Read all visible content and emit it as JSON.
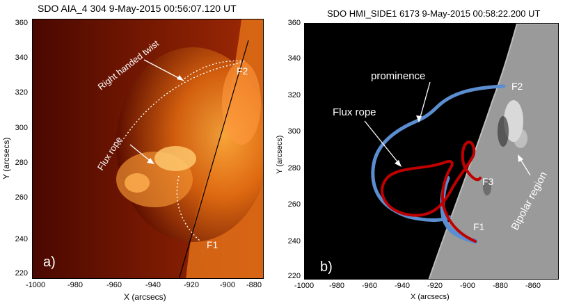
{
  "panel_a": {
    "title": "SDO AIA_4 304  9-May-2015 00:56:07.120 UT",
    "panel_label": "a)",
    "xlabel": "X (arcsecs)",
    "ylabel": "Y (arcsecs)",
    "xticks": [
      "-1000",
      "-980",
      "-960",
      "-940",
      "-920",
      "-900",
      "-880"
    ],
    "yticks": [
      "360",
      "340",
      "320",
      "300",
      "280",
      "260",
      "240",
      "220"
    ],
    "annotations": {
      "twist": "Right handed twist",
      "flux_rope": "Flux rope",
      "f2": "F2",
      "f1": "F1"
    }
  },
  "panel_b": {
    "title": "SDO HMI_SIDE1 6173  9-May-2015 00:58:22.200 UT",
    "panel_label": "b)",
    "xlabel": "X (arcsecs)",
    "ylabel": "Y (arcsecs)",
    "xticks": [
      "-1000",
      "-980",
      "-960",
      "-940",
      "-920",
      "-900",
      "-880",
      "-860"
    ],
    "yticks": [
      "360",
      "340",
      "320",
      "300",
      "280",
      "260",
      "240",
      "220"
    ],
    "annotations": {
      "prominence": "prominence",
      "flux_rope": "Flux rope",
      "bipolar": "Bipolar region",
      "f1": "F1",
      "f2": "F2",
      "f3": "F3"
    }
  },
  "colors": {
    "aia_bg": "#5a0c00",
    "aia_bright": "#ffb040",
    "hmi_disk": "#9a9a9a",
    "prominence_line": "#5b8ed0",
    "flux_rope_line": "#c00000"
  }
}
